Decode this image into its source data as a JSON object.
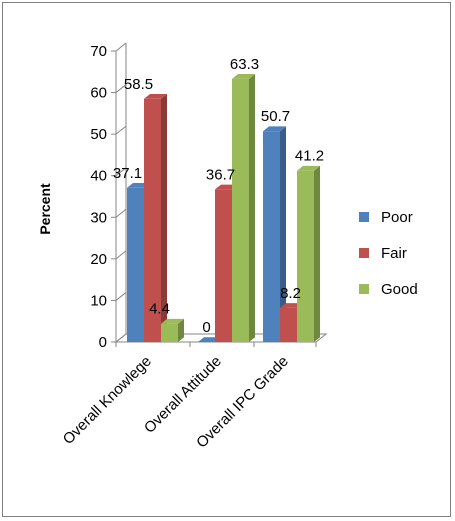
{
  "chart_data": {
    "type": "bar",
    "title": "",
    "xlabel": "",
    "ylabel": "Percent",
    "ylim": [
      0,
      70
    ],
    "yticks": [
      0,
      10,
      20,
      30,
      40,
      50,
      60,
      70
    ],
    "grid": false,
    "legend_position": "right",
    "categories": [
      "Overall Knowlege",
      "Overall  Attitude",
      "Overall IPC Grade"
    ],
    "series": [
      {
        "name": "Poor",
        "color": "#4f81bd",
        "values": [
          37.1,
          0,
          50.7
        ],
        "labels": [
          "37.1",
          "0",
          "50.7"
        ]
      },
      {
        "name": "Fair",
        "color": "#c0504d",
        "values": [
          58.5,
          36.7,
          8.2
        ],
        "labels": [
          "58.5",
          "36.7",
          "8.2"
        ]
      },
      {
        "name": "Good",
        "color": "#9bbb59",
        "values": [
          4.4,
          63.3,
          41.2
        ],
        "labels": [
          "4.4",
          "63.3",
          "41.2"
        ]
      }
    ]
  }
}
